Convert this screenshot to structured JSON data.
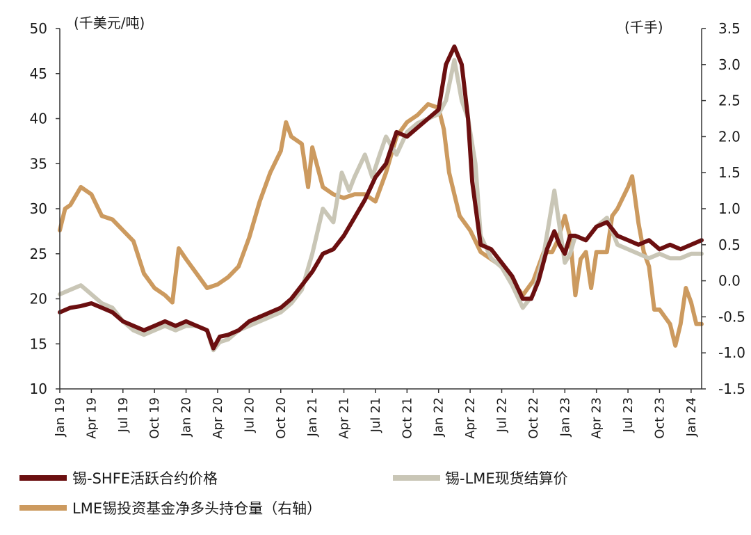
{
  "chart_data": {
    "type": "line",
    "left_unit": "(千美元/吨)",
    "right_unit": "(千手)",
    "left_axis": {
      "min": 10,
      "max": 50,
      "ticks": [
        10,
        15,
        20,
        25,
        30,
        35,
        40,
        45,
        50
      ]
    },
    "right_axis": {
      "min": -1.5,
      "max": 3.5,
      "ticks": [
        "-1.5",
        "-1.0",
        "-0.5",
        "0.0",
        "0.5",
        "1.0",
        "1.5",
        "2.0",
        "2.5",
        "3.0",
        "3.5"
      ]
    },
    "x_ticks": [
      "Jan 19",
      "Apr 19",
      "Jul 19",
      "Oct 19",
      "Jan 20",
      "Apr 20",
      "Jul 20",
      "Oct 20",
      "Jan 21",
      "Apr 21",
      "Jul 21",
      "Oct 21",
      "Jan 22",
      "Apr 22",
      "Jul 22",
      "Oct 22",
      "Jan 23",
      "Apr 23",
      "Jul 23",
      "Oct 23",
      "Jan 24"
    ],
    "x_range_months": [
      0,
      61
    ],
    "series": [
      {
        "name": "锡-SHFE活跃合约价格",
        "axis": "left",
        "color": "#6b0f10",
        "points": [
          [
            0,
            18.5
          ],
          [
            1,
            19
          ],
          [
            2,
            19.2
          ],
          [
            3,
            19.5
          ],
          [
            4,
            19
          ],
          [
            5,
            18.5
          ],
          [
            6,
            17.5
          ],
          [
            7,
            17
          ],
          [
            8,
            16.5
          ],
          [
            9,
            17
          ],
          [
            10,
            17.5
          ],
          [
            11,
            17
          ],
          [
            12,
            17.5
          ],
          [
            13,
            17
          ],
          [
            14,
            16.5
          ],
          [
            14.6,
            14.5
          ],
          [
            15.2,
            15.8
          ],
          [
            16,
            16
          ],
          [
            17,
            16.5
          ],
          [
            18,
            17.5
          ],
          [
            19,
            18
          ],
          [
            20,
            18.5
          ],
          [
            21,
            19
          ],
          [
            22,
            20
          ],
          [
            23,
            21.5
          ],
          [
            24,
            23
          ],
          [
            25,
            25
          ],
          [
            26,
            25.5
          ],
          [
            27,
            27
          ],
          [
            28,
            29
          ],
          [
            29,
            31
          ],
          [
            30,
            33.5
          ],
          [
            31,
            35
          ],
          [
            32,
            38.5
          ],
          [
            33,
            38
          ],
          [
            34,
            39
          ],
          [
            35,
            40
          ],
          [
            36,
            41
          ],
          [
            36.7,
            46
          ],
          [
            37.5,
            48
          ],
          [
            38.2,
            46
          ],
          [
            38.8,
            40
          ],
          [
            39.2,
            33
          ],
          [
            40,
            26
          ],
          [
            41,
            25.5
          ],
          [
            42,
            24
          ],
          [
            43,
            22.5
          ],
          [
            44,
            20
          ],
          [
            44.8,
            20
          ],
          [
            45.5,
            22
          ],
          [
            46.3,
            25.5
          ],
          [
            47,
            27.5
          ],
          [
            47.5,
            26
          ],
          [
            48,
            25
          ],
          [
            48.5,
            27
          ],
          [
            49,
            27
          ],
          [
            50,
            26.5
          ],
          [
            51,
            28
          ],
          [
            52,
            28.5
          ],
          [
            53,
            27
          ],
          [
            54,
            26.5
          ],
          [
            55,
            26
          ],
          [
            56,
            26.5
          ],
          [
            57,
            25.5
          ],
          [
            58,
            26
          ],
          [
            59,
            25.5
          ],
          [
            60,
            26
          ],
          [
            61,
            26.5
          ]
        ]
      },
      {
        "name": "锡-LME现货结算价",
        "axis": "left",
        "color": "#c9c6b6",
        "points": [
          [
            0,
            20.5
          ],
          [
            1,
            21
          ],
          [
            2,
            21.5
          ],
          [
            3,
            20.5
          ],
          [
            4,
            19.5
          ],
          [
            5,
            19
          ],
          [
            6,
            17.5
          ],
          [
            7,
            16.5
          ],
          [
            8,
            16
          ],
          [
            9,
            16.5
          ],
          [
            10,
            17
          ],
          [
            11,
            16.5
          ],
          [
            12,
            17
          ],
          [
            13,
            17
          ],
          [
            14,
            16.5
          ],
          [
            14.6,
            14.3
          ],
          [
            15.2,
            15.2
          ],
          [
            16,
            15.5
          ],
          [
            17,
            16.5
          ],
          [
            18,
            17
          ],
          [
            19,
            17.5
          ],
          [
            20,
            18
          ],
          [
            21,
            18.5
          ],
          [
            22,
            19.5
          ],
          [
            23,
            21
          ],
          [
            24,
            25
          ],
          [
            25,
            30
          ],
          [
            26,
            28.5
          ],
          [
            26.8,
            34
          ],
          [
            27.5,
            32
          ],
          [
            28,
            33.5
          ],
          [
            29,
            36
          ],
          [
            29.7,
            33.5
          ],
          [
            30.4,
            36
          ],
          [
            31,
            38
          ],
          [
            32,
            36
          ],
          [
            33,
            38.5
          ],
          [
            34,
            39.5
          ],
          [
            35,
            40
          ],
          [
            36,
            40.5
          ],
          [
            36.7,
            42
          ],
          [
            37.5,
            46.5
          ],
          [
            38.2,
            42
          ],
          [
            38.8,
            40
          ],
          [
            39.5,
            35
          ],
          [
            40,
            27
          ],
          [
            41,
            24.5
          ],
          [
            42,
            23.5
          ],
          [
            43,
            21.5
          ],
          [
            44,
            19
          ],
          [
            45,
            20.5
          ],
          [
            46,
            25
          ],
          [
            47,
            32
          ],
          [
            47.5,
            28
          ],
          [
            48,
            24
          ],
          [
            48.5,
            25
          ],
          [
            49,
            27
          ],
          [
            50,
            26.5
          ],
          [
            51,
            28
          ],
          [
            52,
            29
          ],
          [
            53,
            26
          ],
          [
            54,
            25.5
          ],
          [
            55,
            25
          ],
          [
            56,
            24.5
          ],
          [
            57,
            25
          ],
          [
            58,
            24.5
          ],
          [
            59,
            24.5
          ],
          [
            60,
            25
          ],
          [
            61,
            25
          ]
        ]
      },
      {
        "name": "LME锡投资基金净多头持仓量（右轴）",
        "axis": "right",
        "color": "#cc9a5f",
        "points": [
          [
            0,
            0.7
          ],
          [
            0.5,
            1.0
          ],
          [
            1,
            1.05
          ],
          [
            2,
            1.3
          ],
          [
            3,
            1.2
          ],
          [
            4,
            0.9
          ],
          [
            5,
            0.85
          ],
          [
            6,
            0.7
          ],
          [
            7,
            0.55
          ],
          [
            8,
            0.1
          ],
          [
            9,
            -0.1
          ],
          [
            10,
            -0.2
          ],
          [
            10.7,
            -0.3
          ],
          [
            11.3,
            0.45
          ],
          [
            12,
            0.3
          ],
          [
            13,
            0.1
          ],
          [
            14,
            -0.1
          ],
          [
            15,
            -0.05
          ],
          [
            16,
            0.05
          ],
          [
            17,
            0.2
          ],
          [
            18,
            0.6
          ],
          [
            19,
            1.1
          ],
          [
            20,
            1.5
          ],
          [
            21,
            1.8
          ],
          [
            21.5,
            2.2
          ],
          [
            22,
            2.0
          ],
          [
            23,
            1.9
          ],
          [
            23.6,
            1.3
          ],
          [
            24,
            1.85
          ],
          [
            25,
            1.3
          ],
          [
            26,
            1.2
          ],
          [
            27,
            1.15
          ],
          [
            28,
            1.2
          ],
          [
            29,
            1.2
          ],
          [
            30,
            1.1
          ],
          [
            31,
            1.5
          ],
          [
            32,
            2.0
          ],
          [
            33,
            2.2
          ],
          [
            34,
            2.3
          ],
          [
            35,
            2.45
          ],
          [
            36,
            2.4
          ],
          [
            36.5,
            2.1
          ],
          [
            37,
            1.5
          ],
          [
            37.5,
            1.2
          ],
          [
            38,
            0.9
          ],
          [
            38.5,
            0.8
          ],
          [
            39,
            0.7
          ],
          [
            39.5,
            0.55
          ],
          [
            40,
            0.4
          ],
          [
            41,
            0.3
          ],
          [
            42,
            0.2
          ],
          [
            43,
            0.0
          ],
          [
            44,
            -0.2
          ],
          [
            45,
            0.0
          ],
          [
            46,
            0.4
          ],
          [
            46.8,
            0.4
          ],
          [
            47.3,
            0.55
          ],
          [
            48,
            0.9
          ],
          [
            48.5,
            0.6
          ],
          [
            49,
            -0.2
          ],
          [
            49.5,
            0.3
          ],
          [
            50,
            0.4
          ],
          [
            50.5,
            -0.1
          ],
          [
            51,
            0.4
          ],
          [
            52,
            0.4
          ],
          [
            52.5,
            0.9
          ],
          [
            53,
            1.0
          ],
          [
            54,
            1.3
          ],
          [
            54.4,
            1.45
          ],
          [
            55,
            0.8
          ],
          [
            55.5,
            0.4
          ],
          [
            56,
            0.2
          ],
          [
            56.5,
            -0.4
          ],
          [
            57,
            -0.4
          ],
          [
            57.5,
            -0.5
          ],
          [
            58,
            -0.6
          ],
          [
            58.5,
            -0.9
          ],
          [
            59,
            -0.6
          ],
          [
            59.5,
            -0.1
          ],
          [
            60,
            -0.3
          ],
          [
            60.5,
            -0.6
          ],
          [
            61,
            -0.6
          ]
        ]
      }
    ]
  }
}
